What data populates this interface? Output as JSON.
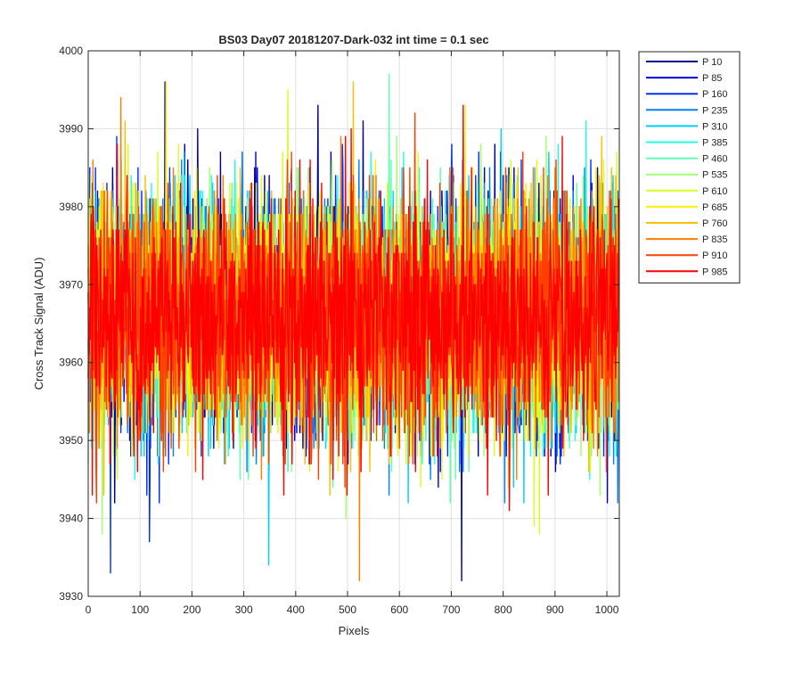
{
  "chart_data": {
    "type": "line",
    "title": "BS03 Day07 20181207-Dark-032 int time = 0.1 sec",
    "xlabel": "Pixels",
    "ylabel": "Cross Track Signal (ADU)",
    "xlim": [
      0,
      1024
    ],
    "ylim": [
      3930,
      4000
    ],
    "xticks": [
      0,
      100,
      200,
      300,
      400,
      500,
      600,
      700,
      800,
      900,
      1000
    ],
    "yticks": [
      3930,
      3940,
      3950,
      3960,
      3970,
      3980,
      3990,
      4000
    ],
    "grid": true,
    "legend_position": "outside-top-right",
    "n_points": 1024,
    "series": [
      {
        "name": "P 10",
        "color": "#00008f",
        "mean": 3966,
        "spread": 7.5
      },
      {
        "name": "P 85",
        "color": "#0000df",
        "mean": 3966,
        "spread": 7.5
      },
      {
        "name": "P 160",
        "color": "#0030ff",
        "mean": 3966,
        "spread": 7.5
      },
      {
        "name": "P 235",
        "color": "#0080ff",
        "mean": 3966,
        "spread": 7.5
      },
      {
        "name": "P 310",
        "color": "#00cfff",
        "mean": 3966,
        "spread": 7.5
      },
      {
        "name": "P 385",
        "color": "#20ffdf",
        "mean": 3966,
        "spread": 7.5
      },
      {
        "name": "P 460",
        "color": "#60ffb0",
        "mean": 3966,
        "spread": 7.5
      },
      {
        "name": "P 535",
        "color": "#9fff70",
        "mean": 3966,
        "spread": 7.5
      },
      {
        "name": "P 610",
        "color": "#d8ff20",
        "mean": 3966,
        "spread": 7.5
      },
      {
        "name": "P 685",
        "color": "#ffef00",
        "mean": 3966,
        "spread": 7.5
      },
      {
        "name": "P 760",
        "color": "#ffbf00",
        "mean": 3966,
        "spread": 7.5
      },
      {
        "name": "P 835",
        "color": "#ff8000",
        "mean": 3966,
        "spread": 7.5
      },
      {
        "name": "P 910",
        "color": "#ff4000",
        "mean": 3966,
        "spread": 7.5
      },
      {
        "name": "P 985",
        "color": "#ff0000",
        "mean": 3966,
        "spread": 7.5
      }
    ],
    "notable_extremes": [
      {
        "series": "P 160",
        "x": 43,
        "y": 3933
      },
      {
        "series": "P 10",
        "x": 148,
        "y": 3996
      },
      {
        "series": "P 685",
        "x": 150,
        "y": 3996
      },
      {
        "series": "P 835",
        "x": 523,
        "y": 3932
      },
      {
        "series": "P 460",
        "x": 580,
        "y": 3997
      },
      {
        "series": "P 10",
        "x": 720,
        "y": 3932
      },
      {
        "series": "P 835",
        "x": 63,
        "y": 3994
      },
      {
        "series": "P 610",
        "x": 870,
        "y": 3938
      }
    ]
  }
}
